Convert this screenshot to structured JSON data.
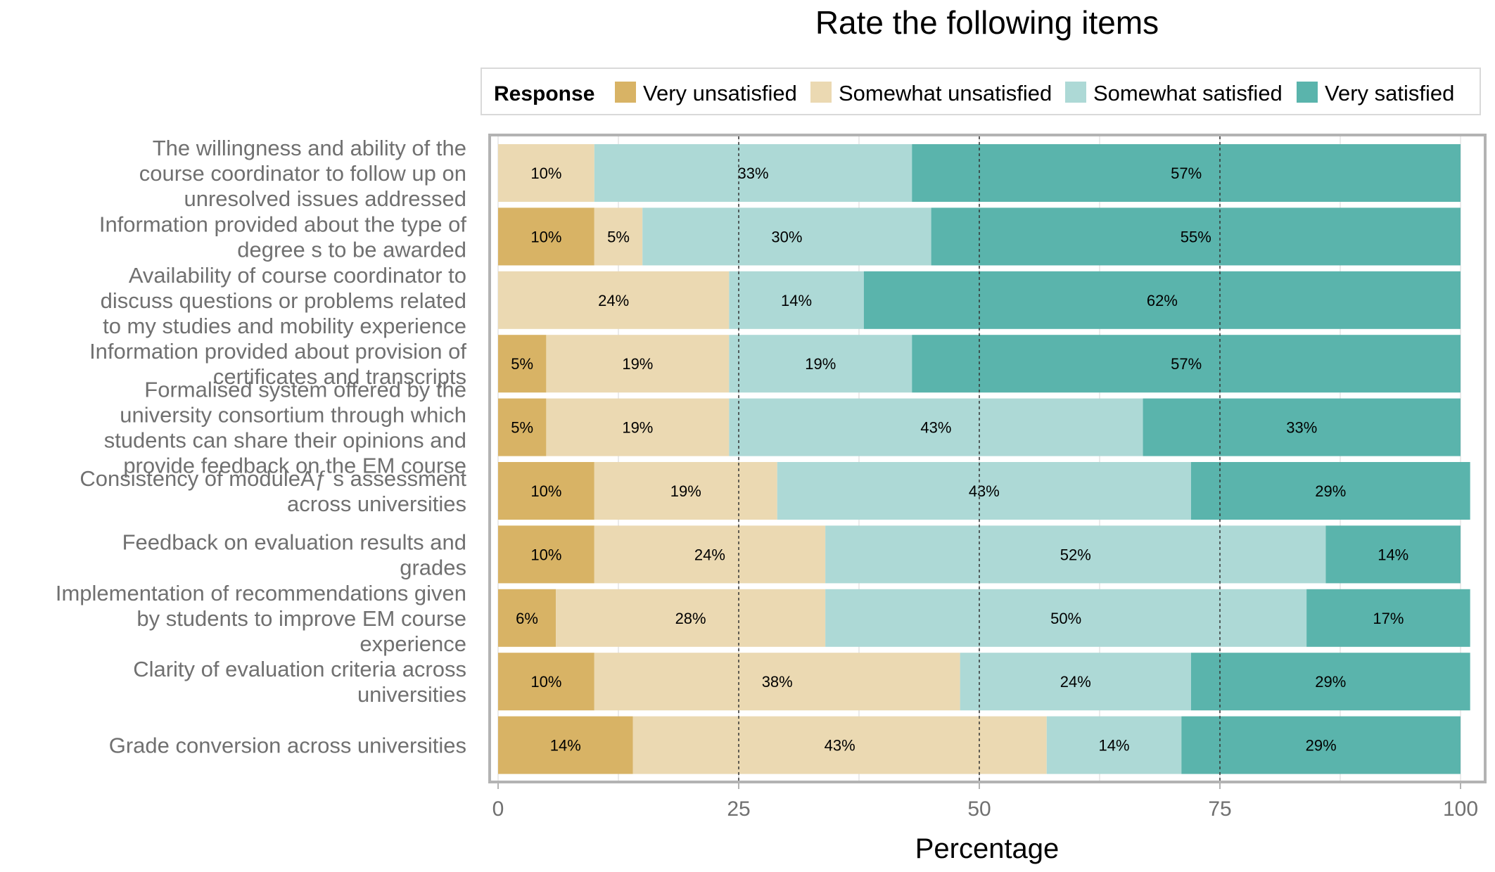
{
  "chart_data": {
    "type": "bar",
    "orientation": "horizontal",
    "stacked": true,
    "title": "Rate the following items",
    "xlabel": "Percentage",
    "ylabel": "",
    "xlim": [
      0,
      100
    ],
    "xticks": [
      "0",
      "25",
      "50",
      "75",
      "100"
    ],
    "xtick_values": [
      0,
      25,
      50,
      75,
      100
    ],
    "grid": true,
    "legend": {
      "title": "Response",
      "placement": "top"
    },
    "categories": [
      "The willingness and ability of the course coordinator to follow up on unresolved issues addressed",
      "Information provided about the type of degree s to be awarded",
      "Availability of course coordinator to discuss questions or problems related to my studies and mobility experience",
      "Information provided about provision of certificates and transcripts",
      "Formalised system offered by the university consortium through which students can share their opinions and provide feedback on the EM course",
      "Consistency of moduleAƒ s assessment across universities",
      "Feedback on evaluation results and grades",
      "Implementation of recommendations given by students to improve EM course experience",
      "Clarity of evaluation criteria across universities",
      "Grade conversion across universities"
    ],
    "category_label_lines": [
      [
        "The willingness and ability of the",
        "course coordinator to follow up on",
        "unresolved issues addressed"
      ],
      [
        "Information provided about the type of",
        "degree s to be awarded"
      ],
      [
        "Availability of course coordinator to",
        "discuss questions or problems related",
        "to my studies and mobility experience"
      ],
      [
        "Information provided about provision of",
        "certificates and transcripts"
      ],
      [
        "Formalised system offered by the",
        "university consortium through which",
        "students can share their opinions and",
        "provide feedback on the EM course"
      ],
      [
        "Consistency of moduleAƒ s assessment",
        "across universities"
      ],
      [
        "Feedback on evaluation results and",
        "grades"
      ],
      [
        "Implementation of recommendations given",
        "by students to improve EM course",
        "experience"
      ],
      [
        "Clarity of evaluation criteria across",
        "universities"
      ],
      [
        "Grade conversion across universities"
      ]
    ],
    "series": [
      {
        "name": "Very unsatisfied",
        "color": "#D8B365",
        "values": [
          0,
          10,
          0,
          5,
          5,
          10,
          10,
          6,
          10,
          14
        ],
        "labels": [
          "",
          "10%",
          "",
          "5%",
          "5%",
          "10%",
          "10%",
          "6%",
          "10%",
          "14%"
        ]
      },
      {
        "name": "Somewhat unsatisfied",
        "color": "#EBD9B2",
        "values": [
          10,
          5,
          24,
          19,
          19,
          19,
          24,
          28,
          38,
          43
        ],
        "labels": [
          "10%",
          "5%",
          "24%",
          "19%",
          "19%",
          "19%",
          "24%",
          "28%",
          "38%",
          "43%"
        ]
      },
      {
        "name": "Somewhat satisfied",
        "color": "#ADD9D6",
        "values": [
          33,
          30,
          14,
          19,
          43,
          43,
          52,
          50,
          24,
          14
        ],
        "labels": [
          "33%",
          "30%",
          "14%",
          "19%",
          "43%",
          "43%",
          "52%",
          "50%",
          "24%",
          "14%"
        ]
      },
      {
        "name": "Very satisfied",
        "color": "#5AB4AC",
        "values": [
          57,
          55,
          62,
          57,
          33,
          29,
          14,
          17,
          29,
          29
        ],
        "labels": [
          "57%",
          "55%",
          "62%",
          "57%",
          "33%",
          "29%",
          "14%",
          "17%",
          "29%",
          "29%"
        ]
      }
    ]
  }
}
